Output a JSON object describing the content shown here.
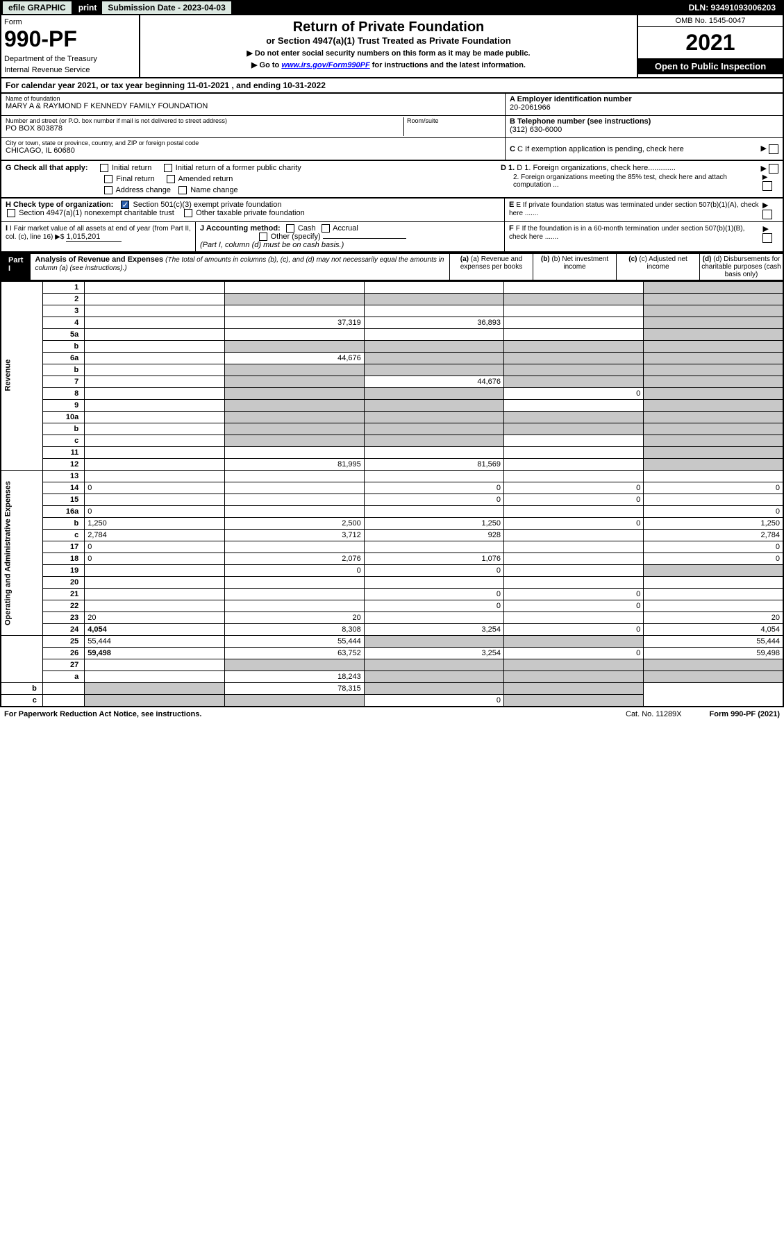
{
  "header": {
    "efile": "efile GRAPHIC",
    "print": "print",
    "submission_label": "Submission Date - 2023-04-03",
    "dln": "DLN: 93491093006203"
  },
  "formhead": {
    "form_label": "Form",
    "form_number": "990-PF",
    "dept1": "Department of the Treasury",
    "dept2": "Internal Revenue Service",
    "title": "Return of Private Foundation",
    "subtitle": "or Section 4947(a)(1) Trust Treated as Private Foundation",
    "note1": "▶ Do not enter social security numbers on this form as it may be made public.",
    "note2_pre": "▶ Go to ",
    "note2_link": "www.irs.gov/Form990PF",
    "note2_post": " for instructions and the latest information.",
    "omb": "OMB No. 1545-0047",
    "year": "2021",
    "open": "Open to Public Inspection"
  },
  "calendar": "For calendar year 2021, or tax year beginning 11-01-2021                           , and ending 10-31-2022",
  "id": {
    "name_label": "Name of foundation",
    "name": "MARY A & RAYMOND F KENNEDY FAMILY FOUNDATION",
    "addr_label": "Number and street (or P.O. box number if mail is not delivered to street address)",
    "addr": "PO BOX 803878",
    "room_label": "Room/suite",
    "city_label": "City or town, state or province, country, and ZIP or foreign postal code",
    "city": "CHICAGO, IL  60680",
    "a_label": "A Employer identification number",
    "a_val": "20-2061966",
    "b_label": "B Telephone number (see instructions)",
    "b_val": "(312) 630-6000",
    "c_label": "C If exemption application is pending, check here"
  },
  "g": {
    "label": "G Check all that apply:",
    "initial": "Initial return",
    "initial_former": "Initial return of a former public charity",
    "final": "Final return",
    "amended": "Amended return",
    "address": "Address change",
    "name_change": "Name change",
    "d1": "D 1. Foreign organizations, check here.............",
    "d2": "2. Foreign organizations meeting the 85% test, check here and attach computation ...",
    "e": "E  If private foundation status was terminated under section 507(b)(1)(A), check here .......",
    "f": "F  If the foundation is in a 60-month termination under section 507(b)(1)(B), check here ......."
  },
  "h": {
    "label": "H Check type of organization:",
    "opt1": "Section 501(c)(3) exempt private foundation",
    "opt2": "Section 4947(a)(1) nonexempt charitable trust",
    "opt3": "Other taxable private foundation"
  },
  "i": {
    "label": "I Fair market value of all assets at end of year (from Part II, col. (c), line 16) ▶$",
    "val": "1,015,201"
  },
  "j": {
    "label": "J Accounting method:",
    "cash": "Cash",
    "accrual": "Accrual",
    "other": "Other (specify)",
    "note": "(Part I, column (d) must be on cash basis.)"
  },
  "part1": {
    "label": "Part I",
    "title": "Analysis of Revenue and Expenses",
    "subtitle": "(The total of amounts in columns (b), (c), and (d) may not necessarily equal the amounts in column (a) (see instructions).)",
    "col_a": "(a)  Revenue and expenses per books",
    "col_b": "(b)  Net investment income",
    "col_c": "(c)  Adjusted net income",
    "col_d": "(d)  Disbursements for charitable purposes (cash basis only)"
  },
  "sidelabels": {
    "revenue": "Revenue",
    "expenses": "Operating and Administrative Expenses"
  },
  "rows": [
    {
      "n": "1",
      "d": "",
      "a": "",
      "b": "",
      "c": "",
      "greyd": true
    },
    {
      "n": "2",
      "d": "",
      "a": "",
      "b": "",
      "c": "",
      "greyabcd": true
    },
    {
      "n": "3",
      "d": "",
      "a": "",
      "b": "",
      "c": "",
      "greyd": true
    },
    {
      "n": "4",
      "d": "",
      "a": "37,319",
      "b": "36,893",
      "c": "",
      "greyd": true
    },
    {
      "n": "5a",
      "d": "",
      "a": "",
      "b": "",
      "c": "",
      "greyd": true
    },
    {
      "n": "b",
      "d": "",
      "a": "",
      "b": "",
      "c": "",
      "greyabcd": true
    },
    {
      "n": "6a",
      "d": "",
      "a": "44,676",
      "b": "",
      "c": "",
      "greybcd": true,
      "greyb": true
    },
    {
      "n": "b",
      "d": "",
      "a": "",
      "b": "",
      "c": "",
      "greyabcd": true
    },
    {
      "n": "7",
      "d": "",
      "a": "",
      "b": "44,676",
      "c": "",
      "greya": true,
      "greycd": true
    },
    {
      "n": "8",
      "d": "",
      "a": "",
      "b": "",
      "c": "0",
      "greyab": true,
      "greyd": true
    },
    {
      "n": "9",
      "d": "",
      "a": "",
      "b": "",
      "c": "",
      "greyab": true,
      "greyd": true
    },
    {
      "n": "10a",
      "d": "",
      "a": "",
      "b": "",
      "c": "",
      "greyabcd": true
    },
    {
      "n": "b",
      "d": "",
      "a": "",
      "b": "",
      "c": "",
      "greyabcd": true
    },
    {
      "n": "c",
      "d": "",
      "a": "",
      "b": "",
      "c": "",
      "greyab": true,
      "greyd": true
    },
    {
      "n": "11",
      "d": "",
      "a": "",
      "b": "",
      "c": "",
      "greyd": true
    },
    {
      "n": "12",
      "d": "",
      "a": "81,995",
      "b": "81,569",
      "c": "",
      "bold": true,
      "greyd": true
    },
    {
      "n": "13",
      "d": "",
      "a": "",
      "b": "",
      "c": ""
    },
    {
      "n": "14",
      "d": "0",
      "a": "",
      "b": "0",
      "c": "0"
    },
    {
      "n": "15",
      "d": "",
      "a": "",
      "b": "0",
      "c": "0"
    },
    {
      "n": "16a",
      "d": "0",
      "a": "",
      "b": "",
      "c": ""
    },
    {
      "n": "b",
      "d": "1,250",
      "a": "2,500",
      "b": "1,250",
      "c": "0"
    },
    {
      "n": "c",
      "d": "2,784",
      "a": "3,712",
      "b": "928",
      "c": ""
    },
    {
      "n": "17",
      "d": "0",
      "a": "",
      "b": "",
      "c": ""
    },
    {
      "n": "18",
      "d": "0",
      "a": "2,076",
      "b": "1,076",
      "c": ""
    },
    {
      "n": "19",
      "d": "",
      "a": "0",
      "b": "0",
      "c": "",
      "greyd": true
    },
    {
      "n": "20",
      "d": "",
      "a": "",
      "b": "",
      "c": ""
    },
    {
      "n": "21",
      "d": "",
      "a": "",
      "b": "0",
      "c": "0"
    },
    {
      "n": "22",
      "d": "",
      "a": "",
      "b": "0",
      "c": "0"
    },
    {
      "n": "23",
      "d": "20",
      "a": "20",
      "b": "",
      "c": ""
    },
    {
      "n": "24",
      "d": "4,054",
      "a": "8,308",
      "b": "3,254",
      "c": "0",
      "bold": true
    },
    {
      "n": "25",
      "d": "55,444",
      "a": "55,444",
      "b": "",
      "c": "",
      "greybc": true
    },
    {
      "n": "26",
      "d": "59,498",
      "a": "63,752",
      "b": "3,254",
      "c": "0",
      "bold": true
    },
    {
      "n": "27",
      "d": "",
      "a": "",
      "b": "",
      "c": "",
      "greyabcd": true
    },
    {
      "n": "a",
      "d": "",
      "a": "18,243",
      "b": "",
      "c": "",
      "bold": true,
      "greybcd": true,
      "greyb": true
    },
    {
      "n": "b",
      "d": "",
      "a": "",
      "b": "78,315",
      "c": "",
      "bold": true,
      "greya": true,
      "greycd": true
    },
    {
      "n": "c",
      "d": "",
      "a": "",
      "b": "",
      "c": "0",
      "bold": true,
      "greyab": true,
      "greyd": true
    }
  ],
  "footer": {
    "paperwork": "For Paperwork Reduction Act Notice, see instructions.",
    "cat": "Cat. No. 11289X",
    "form": "Form 990-PF (2021)"
  }
}
